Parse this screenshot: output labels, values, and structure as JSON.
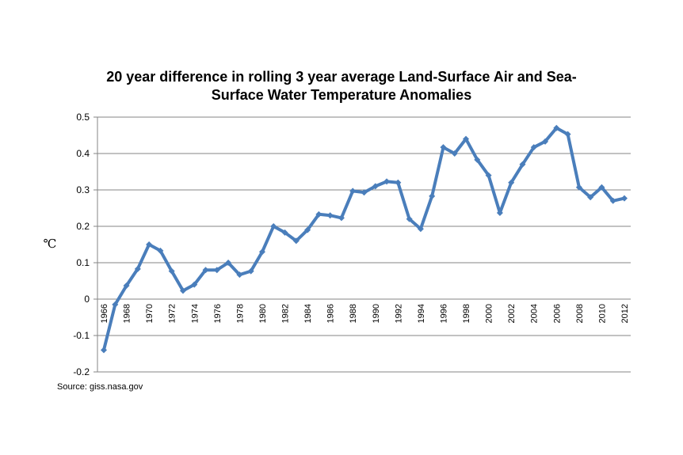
{
  "chart_data": {
    "type": "line",
    "title_lines": [
      "20 year difference in rolling 3 year average Land-Surface Air and Sea-",
      "Surface Water Temperature Anomalies"
    ],
    "ylabel": "℃",
    "xlabel": "",
    "source": "Source: giss.nasa.gov",
    "ylim": [
      -0.2,
      0.5
    ],
    "yticks": [
      -0.2,
      -0.1,
      0,
      0.1,
      0.2,
      0.3,
      0.4,
      0.5
    ],
    "ytick_labels": [
      "-0.2",
      "-0.1",
      "0",
      "0.1",
      "0.2",
      "0.3",
      "0.4",
      "0.5"
    ],
    "xlim": [
      1966,
      2012
    ],
    "xtick_labels": [
      "1966",
      "1968",
      "1970",
      "1972",
      "1974",
      "1976",
      "1978",
      "1980",
      "1982",
      "1984",
      "1986",
      "1988",
      "1990",
      "1992",
      "1994",
      "1996",
      "1998",
      "2000",
      "2002",
      "2004",
      "2006",
      "2008",
      "2010",
      "2012"
    ],
    "grid": true,
    "legend": "none",
    "line_color": "#4a7ebb",
    "grid_color": "#868686",
    "series": [
      {
        "x": [
          1966,
          1967,
          1968,
          1969,
          1970,
          1971,
          1972,
          1973,
          1974,
          1975,
          1976,
          1977,
          1978,
          1979,
          1980,
          1981,
          1982,
          1983,
          1984,
          1985,
          1986,
          1987,
          1988,
          1989,
          1990,
          1991,
          1992,
          1993,
          1994,
          1995,
          1996,
          1997,
          1998,
          1999,
          2000,
          2001,
          2002,
          2003,
          2004,
          2005,
          2006,
          2007,
          2008,
          2009,
          2010,
          2011,
          2012
        ],
        "values": [
          -0.14,
          -0.015,
          0.037,
          0.083,
          0.15,
          0.133,
          0.077,
          0.023,
          0.04,
          0.08,
          0.08,
          0.1,
          0.067,
          0.077,
          0.13,
          0.2,
          0.183,
          0.16,
          0.19,
          0.233,
          0.23,
          0.223,
          0.297,
          0.293,
          0.31,
          0.323,
          0.32,
          0.22,
          0.193,
          0.283,
          0.417,
          0.4,
          0.44,
          0.383,
          0.34,
          0.237,
          0.32,
          0.37,
          0.417,
          0.433,
          0.47,
          0.453,
          0.307,
          0.28,
          0.307,
          0.27,
          0.277
        ]
      }
    ]
  }
}
